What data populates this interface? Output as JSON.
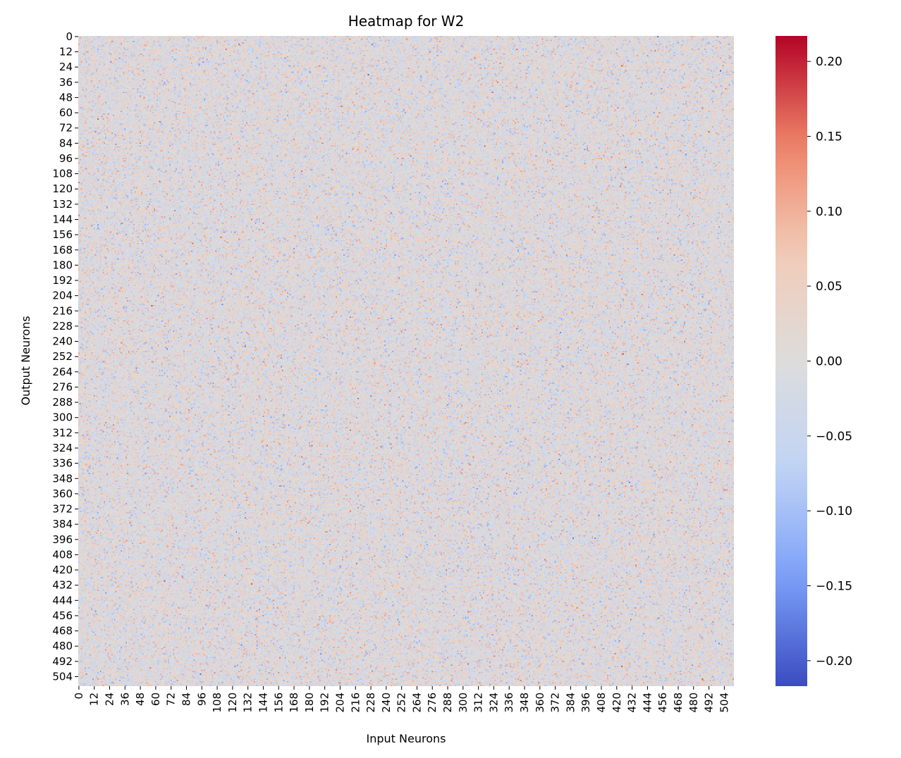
{
  "chart_data": {
    "type": "heatmap",
    "title": "Heatmap for W2",
    "xlabel": "Input Neurons",
    "ylabel": "Output Neurons",
    "rows": 512,
    "cols": 512,
    "x_tick_labels": [
      "0",
      "12",
      "24",
      "36",
      "48",
      "60",
      "72",
      "84",
      "96",
      "108",
      "120",
      "132",
      "144",
      "156",
      "168",
      "180",
      "192",
      "204",
      "216",
      "228",
      "240",
      "252",
      "264",
      "276",
      "288",
      "300",
      "312",
      "324",
      "336",
      "348",
      "360",
      "372",
      "384",
      "396",
      "408",
      "420",
      "432",
      "444",
      "456",
      "468",
      "480",
      "492",
      "504"
    ],
    "y_tick_labels": [
      "0",
      "12",
      "24",
      "36",
      "48",
      "60",
      "72",
      "84",
      "96",
      "108",
      "120",
      "132",
      "144",
      "156",
      "168",
      "180",
      "192",
      "204",
      "216",
      "228",
      "240",
      "252",
      "264",
      "276",
      "288",
      "300",
      "312",
      "324",
      "336",
      "348",
      "360",
      "372",
      "384",
      "396",
      "408",
      "420",
      "432",
      "444",
      "456",
      "468",
      "480",
      "492",
      "504"
    ],
    "tick_step": 12,
    "values_description_range": [
      -0.217,
      0.217
    ],
    "approx_std": 0.045,
    "colormap": "coolwarm",
    "colormap_stops": [
      "#3b4cc0",
      "#7b9ff9",
      "#c0d4f5",
      "#dddcdc",
      "#f2cbb7",
      "#ee8468",
      "#b40426"
    ],
    "colorbar": {
      "min": -0.217,
      "max": 0.217,
      "ticks": [
        0.2,
        0.15,
        0.1,
        0.05,
        0.0,
        -0.05,
        -0.1,
        -0.15,
        -0.2
      ],
      "tick_labels": [
        "0.20",
        "0.15",
        "0.10",
        "0.05",
        "0.00",
        "−0.05",
        "−0.10",
        "−0.15",
        "−0.20"
      ]
    },
    "grid": false,
    "legend": "colorbar-right"
  }
}
